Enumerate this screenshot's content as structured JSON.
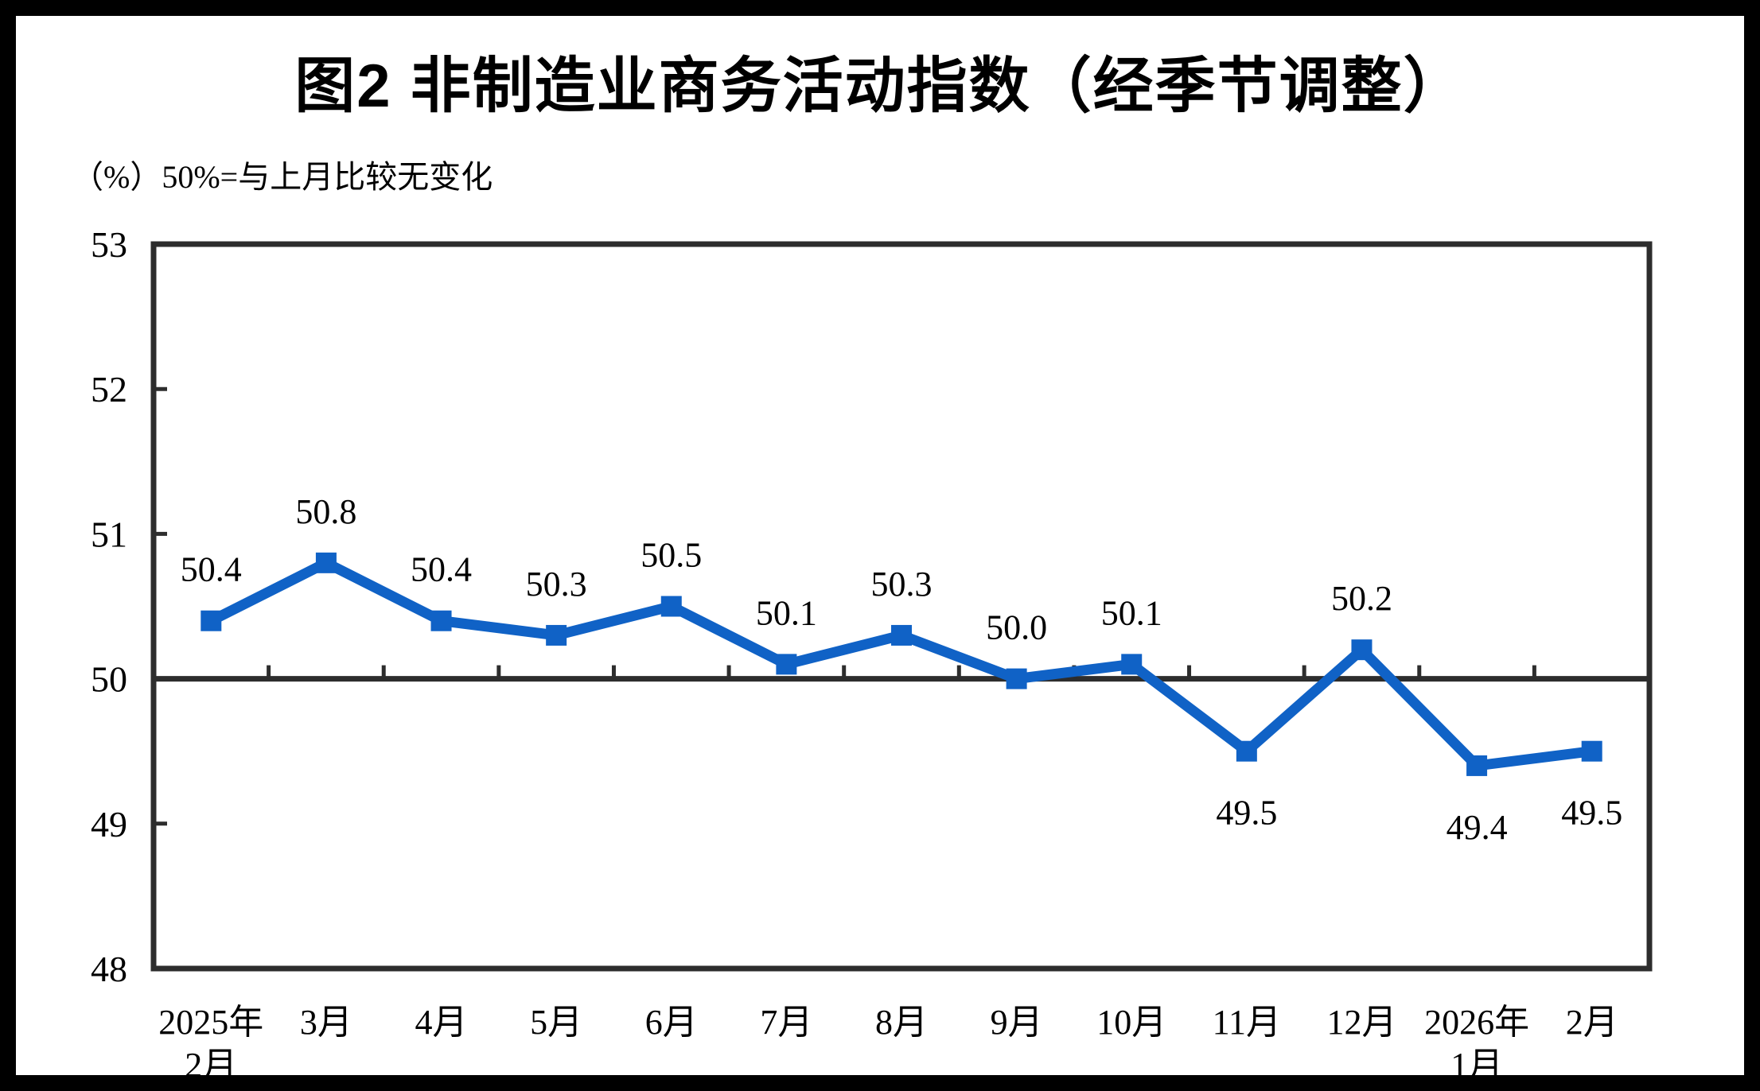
{
  "chart_data": {
    "type": "line",
    "title": "图2 非制造业商务活动指数（经季节调整）",
    "unit_label": "（%）50%=与上月比较无变化",
    "categories": [
      "2025年2月",
      "3月",
      "4月",
      "5月",
      "6月",
      "7月",
      "8月",
      "9月",
      "10月",
      "11月",
      "12月",
      "2026年1月",
      "2月"
    ],
    "category_lines": [
      [
        "2025年",
        "2月"
      ],
      [
        "3月"
      ],
      [
        "4月"
      ],
      [
        "5月"
      ],
      [
        "6月"
      ],
      [
        "7月"
      ],
      [
        "8月"
      ],
      [
        "9月"
      ],
      [
        "10月"
      ],
      [
        "11月"
      ],
      [
        "12月"
      ],
      [
        "2026年",
        "1月"
      ],
      [
        "2月"
      ]
    ],
    "series": [
      {
        "name": "非制造业商务活动指数（经季节调整）",
        "values": [
          50.4,
          50.8,
          50.4,
          50.3,
          50.5,
          50.1,
          50.3,
          50.0,
          50.1,
          49.5,
          50.2,
          49.4,
          49.5
        ],
        "data_labels": [
          "50.4",
          "50.8",
          "50.4",
          "50.3",
          "50.5",
          "50.1",
          "50.3",
          "50.0",
          "50.1",
          "49.5",
          "50.2",
          "49.4",
          "49.5"
        ],
        "label_position": [
          "above",
          "above",
          "above",
          "above",
          "above",
          "above",
          "above",
          "above",
          "above",
          "below",
          "above",
          "below",
          "below"
        ]
      }
    ],
    "ylim": [
      48,
      53
    ],
    "yticks": [
      48,
      49,
      50,
      51,
      52,
      53
    ],
    "reference_line_y": 50,
    "grid": false,
    "legend": "none",
    "line_color": "#1062C6",
    "marker_shape": "square",
    "axis_color": "#2D2D2D",
    "label_color": "#000000"
  }
}
